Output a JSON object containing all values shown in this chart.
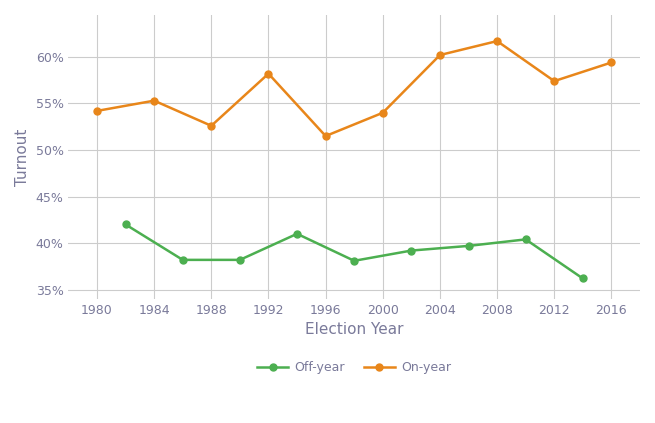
{
  "on_year_years": [
    1980,
    1984,
    1988,
    1992,
    1996,
    2000,
    2004,
    2008,
    2012,
    2016
  ],
  "off_year_years": [
    1982,
    1986,
    1990,
    1994,
    1998,
    2002,
    2006,
    2010,
    2014
  ],
  "on_year_values": [
    0.542,
    0.553,
    0.526,
    0.582,
    0.515,
    0.54,
    0.602,
    0.617,
    0.574,
    0.594
  ],
  "off_year_values": [
    0.42,
    0.382,
    0.382,
    0.41,
    0.381,
    0.392,
    0.397,
    0.404,
    0.362
  ],
  "on_year_color": "#E8861A",
  "off_year_color": "#4CAF50",
  "background_color": "#ffffff",
  "grid_color": "#cccccc",
  "xlabel": "Election Year",
  "ylabel": "Turnout",
  "ylim": [
    0.34,
    0.645
  ],
  "yticks": [
    0.35,
    0.4,
    0.45,
    0.5,
    0.55,
    0.6
  ],
  "xticks": [
    1980,
    1984,
    1988,
    1992,
    1996,
    2000,
    2004,
    2008,
    2012,
    2016
  ],
  "legend_labels": [
    "Off-year",
    "On-year"
  ],
  "line_width": 1.8,
  "marker_size": 5,
  "axis_label_color": "#7a7a9a",
  "tick_label_color": "#7a7a9a"
}
